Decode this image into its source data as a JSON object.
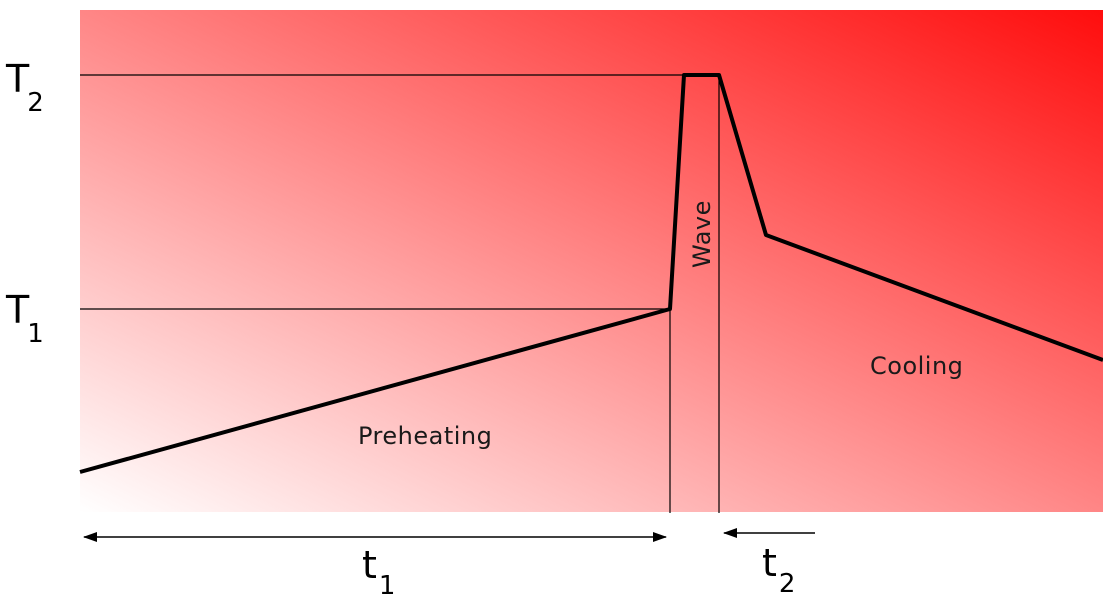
{
  "diagram": {
    "colors": {
      "gradient_start": "#ffffff",
      "gradient_end": "#ff0d0d",
      "profile_line": "#000000",
      "guide_line": "#000000"
    },
    "labels": {
      "t2_temp": {
        "main": "T",
        "sub": "2"
      },
      "t1_temp": {
        "main": "T",
        "sub": "1"
      },
      "t1_time": {
        "main": "t",
        "sub": "1"
      },
      "t2_time": {
        "main": "t",
        "sub": "2"
      }
    },
    "regions": {
      "preheating": "Preheating",
      "wave": "Wave",
      "cooling": "Cooling"
    }
  }
}
